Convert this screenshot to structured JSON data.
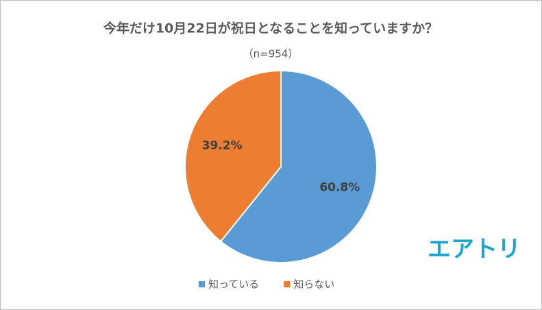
{
  "chart_data": {
    "type": "pie",
    "title": "今年だけ10月22日が祝日となることを知っていますか？",
    "subtitle": "（n=954）",
    "categories": [
      "知っている",
      "知らない"
    ],
    "values": [
      60.8,
      39.2
    ],
    "value_labels": [
      "60.8%",
      "39.2%"
    ],
    "colors": [
      "#5b9bd5",
      "#ed7d31"
    ],
    "legend": "bottom"
  },
  "logo": "エアトリ"
}
